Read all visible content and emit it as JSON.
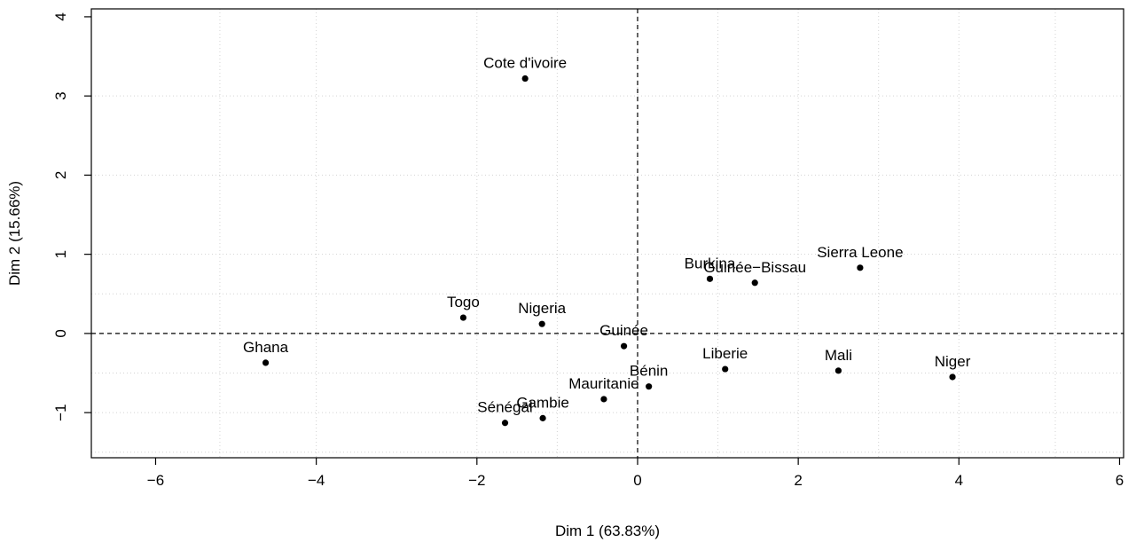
{
  "chart_data": {
    "type": "scatter",
    "title": "",
    "xlabel": "Dim 1 (63.83%)",
    "ylabel": "Dim 2 (15.66%)",
    "xlim": [
      -6.8,
      6.05
    ],
    "ylim": [
      -1.57,
      4.1
    ],
    "xticks": [
      -6,
      -4,
      -2,
      0,
      2,
      4,
      6
    ],
    "yticks": [
      -1,
      0,
      1,
      2,
      3,
      4
    ],
    "xtick_labels": [
      "−6",
      "−4",
      "−2",
      "0",
      "2",
      "4",
      "6"
    ],
    "ytick_labels": [
      "−1",
      "0",
      "1",
      "2",
      "3",
      "4"
    ],
    "xgrid": [
      -5.2,
      -4.0,
      -2.0,
      -1.0,
      0,
      1.0,
      2.0,
      3.0,
      4.0,
      5.2
    ],
    "ygrid": [
      -1.5,
      -1.0,
      -0.5,
      0,
      0.5,
      1.0,
      2.0,
      3.0
    ],
    "grid": true,
    "reference_lines": {
      "x": 0,
      "y": 0
    },
    "points": [
      {
        "label": "Cote d'ivoire",
        "x": -1.4,
        "y": 3.22
      },
      {
        "label": "Burkina",
        "x": 0.9,
        "y": 0.69
      },
      {
        "label": "Guinée−Bissau",
        "x": 1.46,
        "y": 0.64
      },
      {
        "label": "Sierra Leone",
        "x": 2.77,
        "y": 0.83
      },
      {
        "label": "Togo",
        "x": -2.17,
        "y": 0.2
      },
      {
        "label": "Nigeria",
        "x": -1.19,
        "y": 0.12
      },
      {
        "label": "Guinée",
        "x": -0.17,
        "y": -0.16
      },
      {
        "label": "Ghana",
        "x": -4.63,
        "y": -0.37
      },
      {
        "label": "Liberie",
        "x": 1.09,
        "y": -0.45
      },
      {
        "label": "Mali",
        "x": 2.5,
        "y": -0.47
      },
      {
        "label": "Niger",
        "x": 3.92,
        "y": -0.55
      },
      {
        "label": "Bénin",
        "x": 0.14,
        "y": -0.67
      },
      {
        "label": "Mauritanie",
        "x": -0.42,
        "y": -0.83
      },
      {
        "label": "Gambie",
        "x": -1.18,
        "y": -1.07
      },
      {
        "label": "Sénégal",
        "x": -1.65,
        "y": -1.13
      }
    ]
  }
}
